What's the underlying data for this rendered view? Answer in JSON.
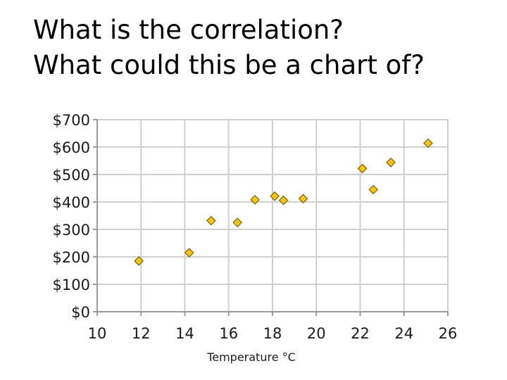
{
  "slide": {
    "line1": "What is the correlation?",
    "line2": "What could this be a chart of?"
  },
  "colors": {
    "marker_fill": "#f5c518",
    "marker_stroke": "#7a6200",
    "grid": "#cfcfcf",
    "axis": "#9a9a9a"
  },
  "chart_data": {
    "type": "scatter",
    "title": "",
    "xlabel": "Temperature °C",
    "ylabel": "",
    "xlim": [
      10,
      26
    ],
    "ylim": [
      0,
      700
    ],
    "x_ticks": [
      10,
      12,
      14,
      16,
      18,
      20,
      22,
      24,
      26
    ],
    "y_ticks": [
      0,
      100,
      200,
      300,
      400,
      500,
      600,
      700
    ],
    "y_tick_prefix": "$",
    "grid": true,
    "legend": "none",
    "points": [
      {
        "x": 11.9,
        "y": 185
      },
      {
        "x": 14.2,
        "y": 215
      },
      {
        "x": 15.2,
        "y": 332
      },
      {
        "x": 16.4,
        "y": 325
      },
      {
        "x": 17.2,
        "y": 408
      },
      {
        "x": 18.1,
        "y": 421
      },
      {
        "x": 18.5,
        "y": 406
      },
      {
        "x": 19.4,
        "y": 412
      },
      {
        "x": 22.1,
        "y": 522
      },
      {
        "x": 22.6,
        "y": 445
      },
      {
        "x": 23.4,
        "y": 544
      },
      {
        "x": 25.1,
        "y": 614
      }
    ]
  }
}
